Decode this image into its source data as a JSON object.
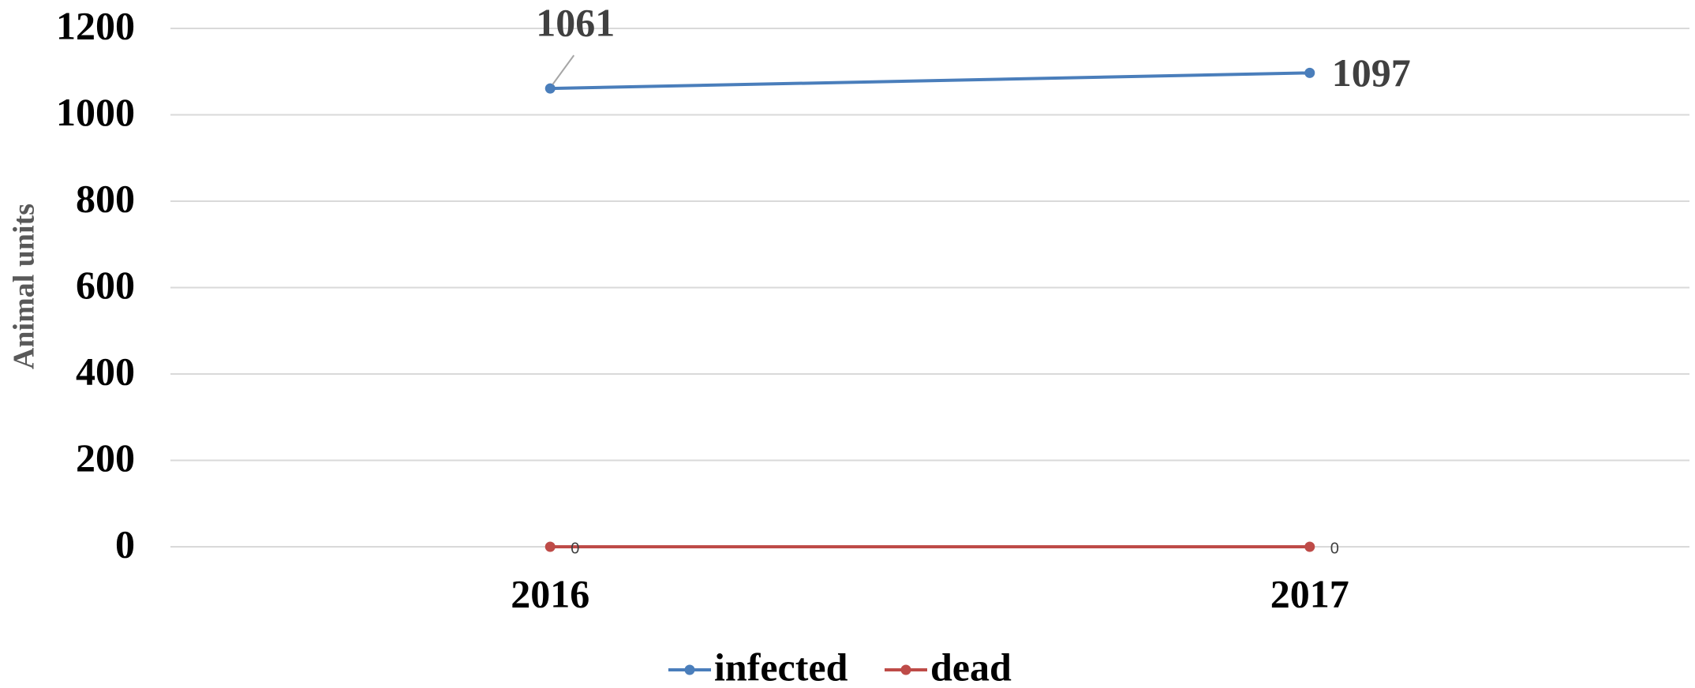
{
  "chart_data": {
    "type": "line",
    "y_label": "Animal units",
    "categories": [
      "2016",
      "2017"
    ],
    "series": [
      {
        "name": "infected",
        "color": "#4a7ebb",
        "values": [
          1061,
          1097
        ]
      },
      {
        "name": "dead",
        "color": "#be4b48",
        "values": [
          0,
          0
        ]
      }
    ],
    "ylim": [
      0,
      1200
    ],
    "yticks": [
      0,
      200,
      400,
      600,
      800,
      1000,
      1200
    ],
    "grid": true,
    "legend": "bottom"
  }
}
